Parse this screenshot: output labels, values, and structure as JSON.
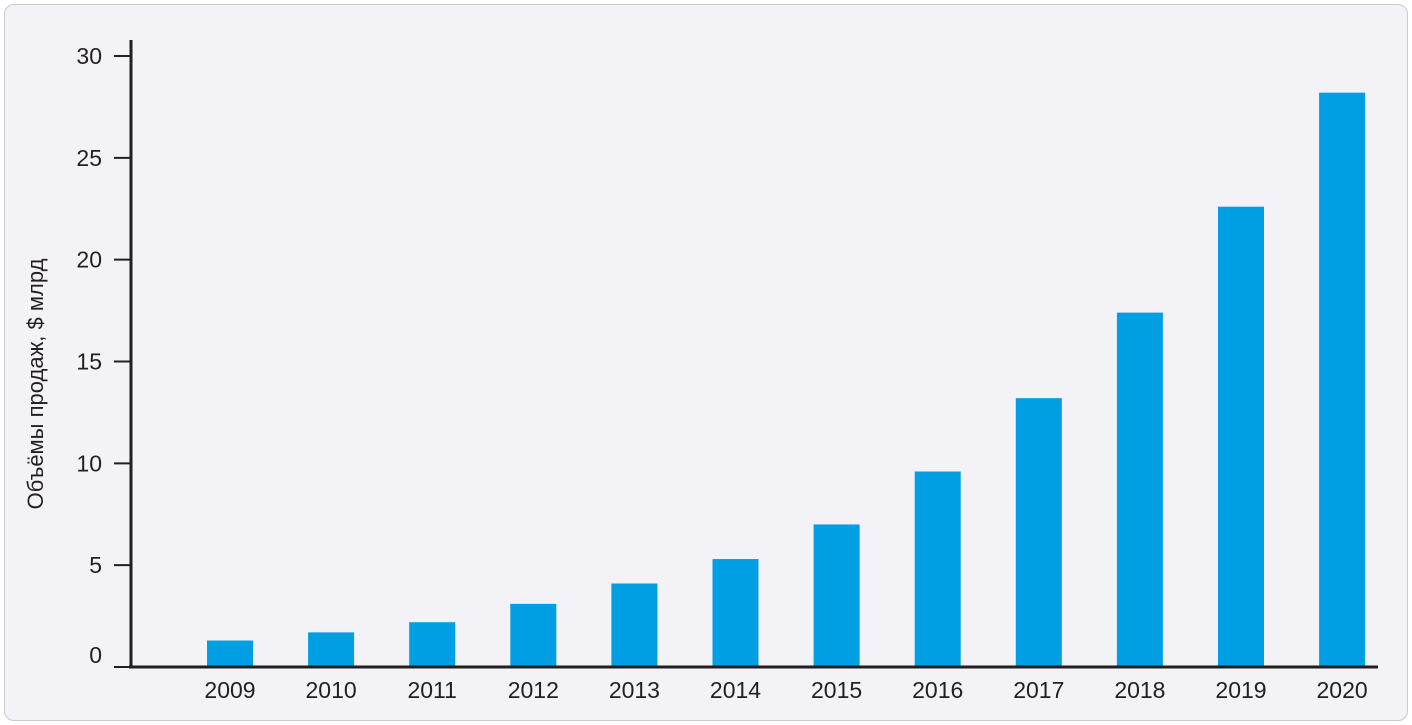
{
  "chart_data": {
    "type": "bar",
    "title": "",
    "xlabel": "",
    "ylabel": "Объёмы продаж, $ млрд",
    "categories": [
      "2009",
      "2010",
      "2011",
      "2012",
      "2013",
      "2014",
      "2015",
      "2016",
      "2017",
      "2018",
      "2019",
      "2020"
    ],
    "values": [
      1.3,
      1.7,
      2.2,
      3.1,
      4.1,
      5.3,
      7.0,
      9.6,
      13.2,
      17.4,
      22.6,
      28.2
    ],
    "ylim": [
      0,
      30
    ],
    "yticks": [
      "0",
      "5",
      "10",
      "15",
      "20",
      "25",
      "30"
    ],
    "grid": false,
    "bar_color": "#009fe3",
    "axis_color": "#231f20"
  }
}
